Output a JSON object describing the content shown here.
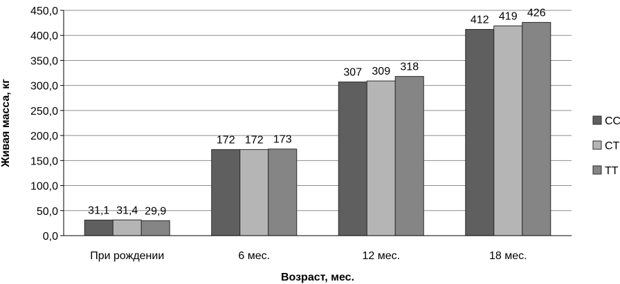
{
  "chart_data": {
    "type": "bar",
    "title": "",
    "xlabel": "Возраст, мес.",
    "ylabel": "Живая масса, кг",
    "categories": [
      "При рождении",
      "6 мес.",
      "12 мес.",
      "18 мес."
    ],
    "ylim": [
      0,
      450
    ],
    "yticks": [
      "0,0",
      "50,0",
      "100,0",
      "150,0",
      "200,0",
      "250,0",
      "300,0",
      "350,0",
      "400,0",
      "450,0"
    ],
    "grid": true,
    "legend_position": "right",
    "series": [
      {
        "name": "CC",
        "color": "#5f5f5f",
        "values": [
          31.1,
          172,
          307,
          412
        ],
        "labels": [
          "31,1",
          "172",
          "307",
          "412"
        ]
      },
      {
        "name": "CT",
        "color": "#b5b5b5",
        "values": [
          31.4,
          172,
          309,
          419
        ],
        "labels": [
          "31,4",
          "172",
          "309",
          "419"
        ]
      },
      {
        "name": "TT",
        "color": "#858585",
        "values": [
          29.9,
          173,
          318,
          426
        ],
        "labels": [
          "29,9",
          "173",
          "318",
          "426"
        ]
      }
    ]
  }
}
